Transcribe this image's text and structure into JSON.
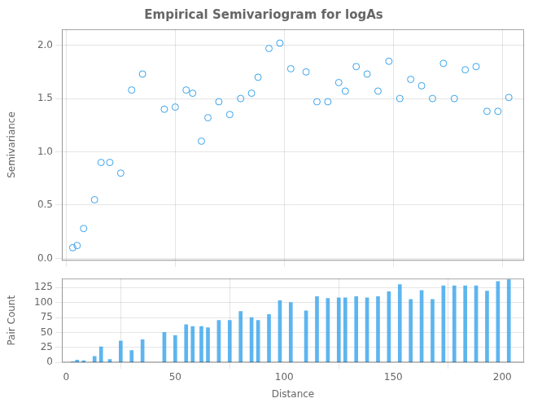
{
  "chart_data": [
    {
      "type": "scatter",
      "title": "Empirical Semivariogram for logAs",
      "ylabel": "Semivariance",
      "x": [
        3,
        5,
        8,
        13,
        16,
        20,
        25,
        30,
        35,
        45,
        50,
        55,
        58,
        62,
        65,
        70,
        75,
        80,
        85,
        88,
        93,
        98,
        103,
        110,
        115,
        120,
        125,
        128,
        133,
        138,
        143,
        148,
        153,
        158,
        163,
        168,
        173,
        178,
        183,
        188,
        193,
        198,
        203
      ],
      "values": [
        0.1,
        0.12,
        0.28,
        0.55,
        0.9,
        0.9,
        0.8,
        1.58,
        1.73,
        1.4,
        1.42,
        1.58,
        1.55,
        1.1,
        1.32,
        1.47,
        1.35,
        1.5,
        1.55,
        1.7,
        1.97,
        2.02,
        1.78,
        1.75,
        1.47,
        1.47,
        1.65,
        1.57,
        1.8,
        1.73,
        1.57,
        1.85,
        1.5,
        1.68,
        1.62,
        1.5,
        1.83,
        1.5,
        1.77,
        1.8,
        1.38,
        1.38,
        1.51
      ],
      "xlim": [
        -2,
        210
      ],
      "xticks": [
        0,
        50,
        100,
        150,
        200
      ],
      "ylim": [
        -0.02,
        2.15
      ],
      "yticks": [
        {
          "value": 0,
          "label": "0.0"
        },
        0.5,
        {
          "value": 1,
          "label": "1.0"
        },
        1.5,
        {
          "value": 2,
          "label": "2.0"
        }
      ],
      "grid": true,
      "tick_labels": "y",
      "marker": "circle"
    },
    {
      "type": "bar",
      "xlabel": "Distance",
      "ylabel": "Pair Count",
      "x": [
        3,
        5,
        8,
        13,
        16,
        20,
        25,
        30,
        35,
        45,
        50,
        55,
        58,
        62,
        65,
        70,
        75,
        80,
        85,
        88,
        93,
        98,
        103,
        110,
        115,
        120,
        125,
        128,
        133,
        138,
        143,
        148,
        153,
        158,
        163,
        168,
        173,
        178,
        183,
        188,
        193,
        198,
        203
      ],
      "values": [
        1,
        4,
        3,
        10,
        26,
        5,
        36,
        20,
        38,
        50,
        45,
        63,
        60,
        60,
        58,
        70,
        70,
        85,
        75,
        70,
        80,
        103,
        100,
        86,
        110,
        107,
        108,
        108,
        110,
        108,
        110,
        118,
        130,
        105,
        120,
        105,
        128,
        128,
        128,
        128,
        119,
        135,
        138
      ],
      "xlim": [
        -2,
        210
      ],
      "xticks": [
        0,
        50,
        100,
        150,
        200
      ],
      "ylim": [
        0,
        140
      ],
      "yticks": [
        0,
        25,
        50,
        75,
        100,
        125
      ],
      "grid": true
    }
  ]
}
